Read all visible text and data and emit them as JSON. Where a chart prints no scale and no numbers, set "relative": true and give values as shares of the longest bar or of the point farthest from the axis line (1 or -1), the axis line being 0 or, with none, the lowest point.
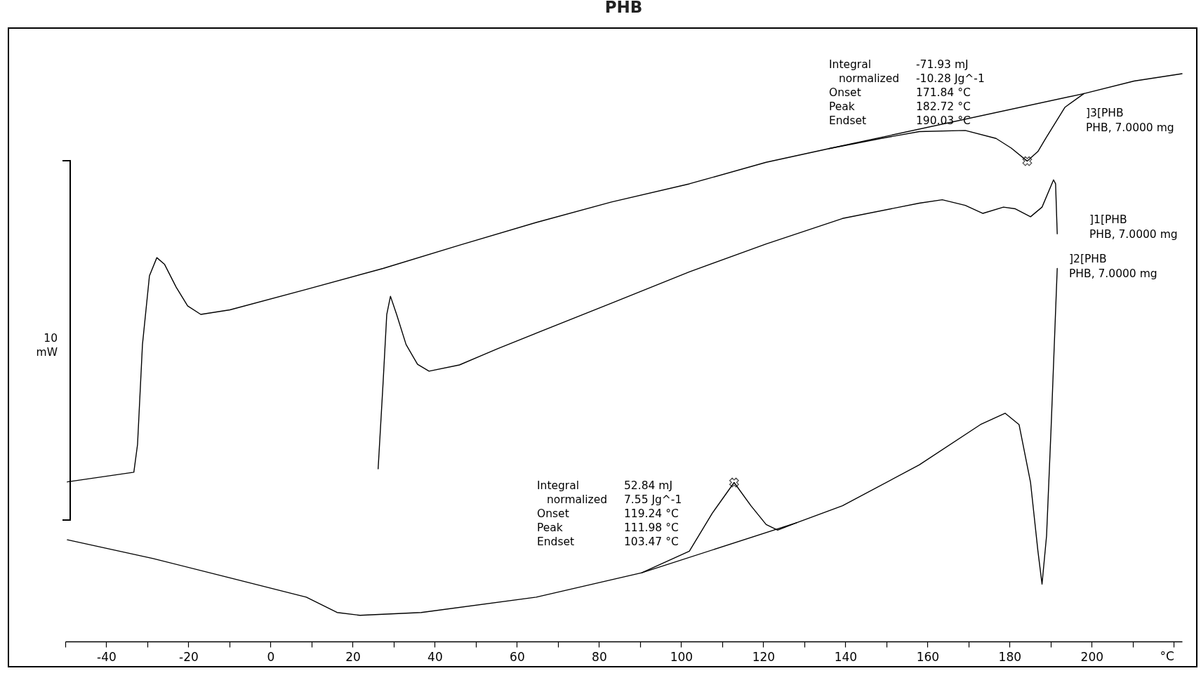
{
  "chart_data": {
    "type": "line",
    "title": "PHB",
    "xlabel": "°C",
    "relative": true,
    "legend": false,
    "grid": false,
    "xlim": [
      -50,
      222
    ],
    "xticks": [
      {
        "value": -50,
        "label": null
      },
      -40,
      {
        "value": -30,
        "label": null
      },
      -20,
      {
        "value": -10,
        "label": null
      },
      0,
      {
        "value": 10,
        "label": null
      },
      20,
      {
        "value": 30,
        "label": null
      },
      40,
      {
        "value": 50,
        "label": null
      },
      60,
      {
        "value": 70,
        "label": null
      },
      80,
      {
        "value": 90,
        "label": null
      },
      100,
      {
        "value": 110,
        "label": null
      },
      120,
      {
        "value": 130,
        "label": null
      },
      140,
      {
        "value": 150,
        "label": null
      },
      160,
      {
        "value": 170,
        "label": null
      },
      180,
      {
        "value": 190,
        "label": null
      },
      200,
      {
        "value": 210,
        "label": null
      },
      {
        "value": 220,
        "label": null
      }
    ],
    "annotations": [
      "10\nmW",
      "Integral\t-71.93 mJ\n  normalized\t-10.28 Jg^-1\nOnset\t171.84 °C\nPeak\t182.72 °C\nEndset\t190.03 °C",
      "Integral\t52.84 mJ\n  normalized\t7.55 Jg^-1\nOnset\t119.24 °C\nPeak\t111.98 °C\nEndset\t103.47 °C"
    ],
    "series": [
      {
        "name": "]3[PHB\nPHB, 7.0000 mg",
        "type": "line",
        "color": "#000000",
        "x": [
          -49.5,
          -33.3,
          -32.4,
          -31.2,
          -29.5,
          -27.7,
          -25.8,
          -23.0,
          -20.2,
          -17.0,
          -9.9,
          8.7,
          27.4,
          46.0,
          64.7,
          83.0,
          102.0,
          120.7,
          136.0,
          148.7,
          158.0,
          169.2,
          176.7,
          180.4,
          184.3,
          186.9,
          188.8,
          193.5,
          198.1,
          210.3,
          222.0
        ],
        "values": [
          0.281,
          0.298,
          0.347,
          0.523,
          0.644,
          0.676,
          0.664,
          0.624,
          0.591,
          0.576,
          0.584,
          0.62,
          0.657,
          0.698,
          0.738,
          0.774,
          0.806,
          0.844,
          0.868,
          0.886,
          0.898,
          0.9,
          0.886,
          0.869,
          0.846,
          0.863,
          0.886,
          0.941,
          0.965,
          0.987,
          1.0
        ]
      },
      {
        "name": "]1[PHB\nPHB, 7.0000 mg",
        "type": "line",
        "color": "#000000",
        "x": [
          26.2,
          27.4,
          28.3,
          29.2,
          30.7,
          33.0,
          35.8,
          38.6,
          46.0,
          55.4,
          83.4,
          102.0,
          120.7,
          139.3,
          158.0,
          163.6,
          169.2,
          173.5,
          178.5,
          181.4,
          185.1,
          187.9,
          190.7,
          191.2,
          191.6
        ],
        "values": [
          0.304,
          0.455,
          0.576,
          0.608,
          0.576,
          0.523,
          0.488,
          0.476,
          0.487,
          0.516,
          0.597,
          0.651,
          0.7,
          0.745,
          0.772,
          0.778,
          0.768,
          0.754,
          0.765,
          0.762,
          0.748,
          0.765,
          0.813,
          0.806,
          0.718
        ]
      },
      {
        "name": "]2[PHB\nPHB, 7.0000 mg",
        "type": "line",
        "color": "#000000",
        "x": [
          -49.5,
          -28.6,
          -9.9,
          8.7,
          16.2,
          21.8,
          36.7,
          64.7,
          90.4,
          102.0,
          107.6,
          112.9,
          117.0,
          120.7,
          123.5,
          128.1,
          139.3,
          158.0,
          172.9,
          178.9,
          182.3,
          185.1,
          186.9,
          187.9,
          189.0,
          190.1,
          191.6
        ],
        "values": [
          0.179,
          0.146,
          0.112,
          0.078,
          0.051,
          0.046,
          0.051,
          0.078,
          0.121,
          0.159,
          0.226,
          0.28,
          0.239,
          0.206,
          0.196,
          0.209,
          0.239,
          0.311,
          0.382,
          0.402,
          0.382,
          0.28,
          0.159,
          0.101,
          0.186,
          0.375,
          0.657
        ]
      },
      {
        "type": "line",
        "color": "#000000",
        "x": [
          136.0,
          198.1
        ],
        "values": [
          0.868,
          0.965
        ]
      },
      {
        "type": "line",
        "color": "#000000",
        "x": [
          90.4,
          128.1
        ],
        "values": [
          0.121,
          0.209
        ]
      },
      {
        "type": "scatter",
        "marker": "cross",
        "color": "#000000",
        "x": [
          184.3,
          112.9
        ],
        "values": [
          0.846,
          0.28
        ]
      }
    ]
  }
}
